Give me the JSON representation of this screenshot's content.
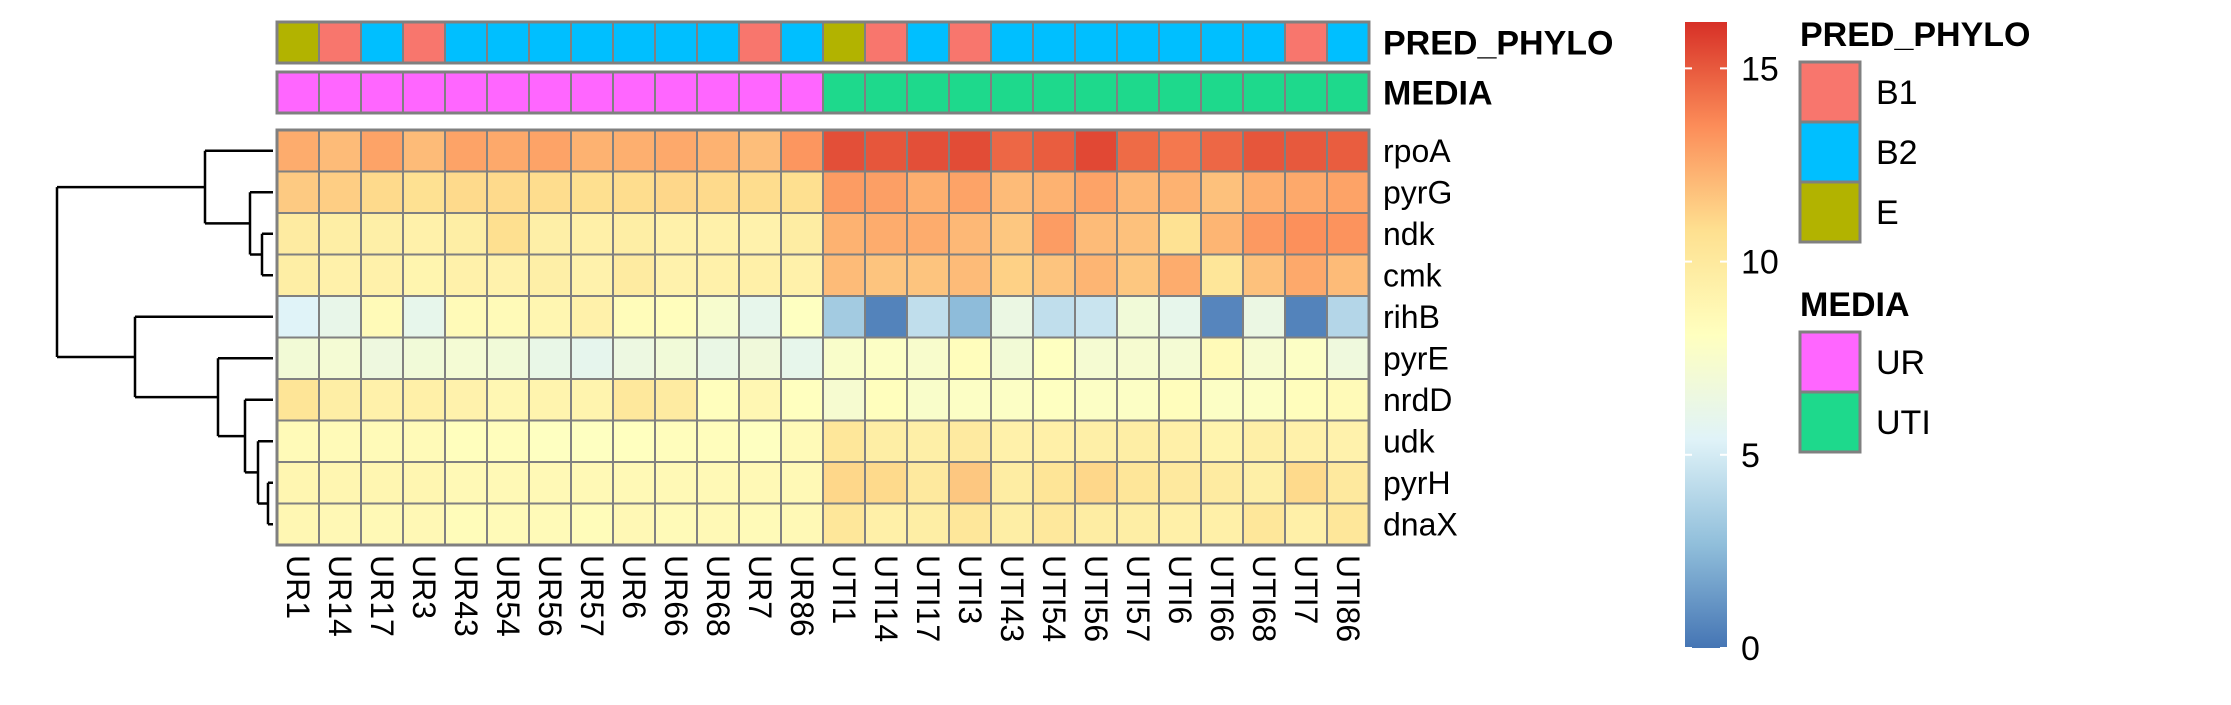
{
  "chart_data": {
    "type": "heatmap",
    "columns": [
      "UR1",
      "UR14",
      "UR17",
      "UR3",
      "UR43",
      "UR54",
      "UR56",
      "UR57",
      "UR6",
      "UR66",
      "UR68",
      "UR7",
      "UR86",
      "UTI1",
      "UTI14",
      "UTI17",
      "UTI3",
      "UTI43",
      "UTI54",
      "UTI56",
      "UTI57",
      "UTI6",
      "UTI66",
      "UTI68",
      "UTI7",
      "UTI86"
    ],
    "rows": [
      "rpoA",
      "pyrG",
      "ndk",
      "cmk",
      "rihB",
      "pyrE",
      "nrdD",
      "udk",
      "pyrH",
      "dnaX"
    ],
    "values": [
      [
        12.5,
        12.0,
        12.8,
        12.0,
        12.8,
        12.6,
        12.8,
        12.3,
        12.4,
        12.6,
        12.3,
        11.9,
        13.2,
        15.3,
        15.1,
        15.3,
        15.4,
        14.6,
        14.9,
        15.5,
        14.5,
        14.1,
        14.6,
        15.1,
        15.0,
        14.9
      ],
      [
        11.5,
        11.4,
        11.0,
        10.7,
        11.0,
        11.0,
        10.9,
        10.8,
        10.9,
        11.1,
        11.0,
        10.9,
        10.8,
        13.0,
        12.9,
        12.4,
        12.8,
        12.0,
        12.3,
        12.8,
        12.1,
        12.3,
        11.8,
        12.4,
        12.6,
        12.8
      ],
      [
        9.8,
        9.6,
        9.5,
        9.3,
        9.6,
        10.8,
        9.5,
        9.4,
        9.6,
        9.3,
        9.3,
        9.2,
        9.7,
        12.3,
        12.5,
        12.5,
        12.1,
        11.6,
        13.0,
        12.0,
        11.8,
        10.6,
        12.2,
        13.1,
        13.4,
        13.3
      ],
      [
        9.6,
        9.3,
        9.3,
        9.0,
        9.3,
        9.2,
        9.5,
        9.2,
        9.8,
        9.2,
        9.3,
        9.4,
        9.3,
        12.0,
        11.7,
        11.7,
        12.0,
        11.3,
        11.7,
        12.2,
        11.6,
        12.5,
        10.3,
        11.8,
        12.6,
        12.0
      ],
      [
        5.4,
        6.1,
        8.5,
        6.0,
        8.5,
        8.5,
        8.9,
        9.3,
        8.4,
        8.3,
        7.4,
        6.0,
        8.0,
        3.3,
        0.5,
        4.3,
        2.6,
        6.4,
        4.3,
        4.6,
        6.9,
        6.0,
        0.6,
        6.4,
        0.5,
        3.9
      ],
      [
        7.0,
        7.1,
        6.6,
        6.9,
        7.1,
        6.9,
        6.2,
        5.9,
        6.5,
        6.9,
        6.3,
        6.8,
        6.0,
        7.6,
        7.8,
        7.5,
        8.3,
        7.0,
        8.0,
        7.2,
        7.3,
        7.1,
        8.5,
        7.3,
        7.8,
        6.7
      ],
      [
        10.4,
        9.6,
        9.3,
        9.4,
        9.2,
        8.8,
        9.1,
        9.1,
        10.1,
        9.8,
        8.2,
        8.8,
        8.1,
        7.3,
        8.2,
        7.6,
        7.8,
        7.8,
        8.0,
        7.8,
        7.8,
        8.3,
        7.8,
        7.8,
        8.3,
        8.5
      ],
      [
        8.5,
        8.5,
        8.5,
        8.5,
        8.2,
        8.3,
        8.0,
        8.0,
        8.1,
        8.3,
        8.3,
        8.0,
        8.5,
        10.2,
        9.6,
        9.5,
        9.9,
        9.3,
        9.4,
        9.5,
        9.6,
        9.4,
        9.1,
        9.5,
        9.3,
        9.2
      ],
      [
        8.9,
        8.9,
        8.9,
        8.9,
        8.6,
        8.6,
        8.6,
        8.6,
        8.6,
        8.6,
        8.6,
        8.6,
        8.6,
        11.1,
        11.0,
        10.0,
        11.6,
        9.7,
        10.4,
        11.1,
        10.3,
        10.0,
        9.8,
        9.5,
        11.0,
        10.0
      ],
      [
        8.8,
        8.7,
        8.6,
        8.7,
        8.4,
        8.5,
        8.5,
        8.4,
        8.7,
        8.5,
        8.6,
        8.5,
        8.6,
        10.2,
        9.4,
        9.6,
        10.2,
        9.6,
        10.1,
        9.7,
        9.6,
        9.4,
        9.4,
        10.2,
        9.4,
        10.2
      ]
    ],
    "annotations": [
      {
        "name": "PRED_PHYLO",
        "values": [
          "E",
          "B1",
          "B2",
          "B1",
          "B2",
          "B2",
          "B2",
          "B2",
          "B2",
          "B2",
          "B2",
          "B1",
          "B2",
          "E",
          "B1",
          "B2",
          "B1",
          "B2",
          "B2",
          "B2",
          "B2",
          "B2",
          "B2",
          "B2",
          "B1",
          "B2"
        ]
      },
      {
        "name": "MEDIA",
        "values": [
          "UR",
          "UR",
          "UR",
          "UR",
          "UR",
          "UR",
          "UR",
          "UR",
          "UR",
          "UR",
          "UR",
          "UR",
          "UR",
          "UTI",
          "UTI",
          "UTI",
          "UTI",
          "UTI",
          "UTI",
          "UTI",
          "UTI",
          "UTI",
          "UTI",
          "UTI",
          "UTI",
          "UTI"
        ]
      }
    ],
    "legend_groups": [
      {
        "title": "PRED_PHYLO",
        "items": [
          {
            "label": "B1",
            "color": "#F8766D"
          },
          {
            "label": "B2",
            "color": "#00BFFF"
          },
          {
            "label": "E",
            "color": "#B2B300"
          }
        ]
      },
      {
        "title": "MEDIA",
        "items": [
          {
            "label": "UR",
            "color": "#FF66FF"
          },
          {
            "label": "UTI",
            "color": "#1ED98C"
          }
        ]
      }
    ],
    "color_scale": {
      "range": [
        0,
        16.2
      ],
      "ticks": [
        0,
        5,
        10,
        15
      ],
      "colors": [
        "#4575B4",
        "#91BFDB",
        "#E0F3F8",
        "#FFFFBF",
        "#FEE090",
        "#FC8D59",
        "#D73027"
      ]
    },
    "row_dendrogram": true,
    "legend_position": "right"
  }
}
